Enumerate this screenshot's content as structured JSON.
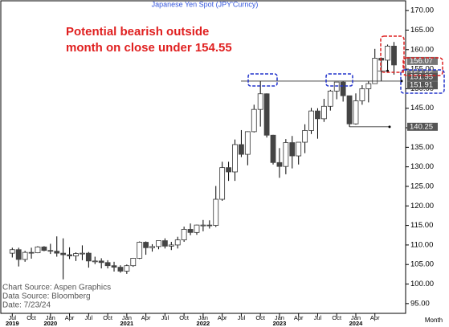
{
  "chart_data": {
    "type": "candlestick",
    "title": "Japanese Yen Spot (JPY'Curncy)",
    "annotation": [
      "Potential bearish outside",
      "month on close under 154.55"
    ],
    "source": [
      "Chart Source:  Aspen Graphics",
      "Data  Source:  Bloomberg",
      "Date:    7/23/24"
    ],
    "x_axis_label": "Month",
    "x": [
      "2019-07",
      "2019-08",
      "2019-09",
      "2019-10",
      "2019-11",
      "2019-12",
      "2020-01",
      "2020-02",
      "2020-03",
      "2020-04",
      "2020-05",
      "2020-06",
      "2020-07",
      "2020-08",
      "2020-09",
      "2020-10",
      "2020-11",
      "2020-12",
      "2021-01",
      "2021-02",
      "2021-03",
      "2021-04",
      "2021-05",
      "2021-06",
      "2021-07",
      "2021-08",
      "2021-09",
      "2021-10",
      "2021-11",
      "2021-12",
      "2022-01",
      "2022-02",
      "2022-03",
      "2022-04",
      "2022-05",
      "2022-06",
      "2022-07",
      "2022-08",
      "2022-09",
      "2022-10",
      "2022-11",
      "2022-12",
      "2023-01",
      "2023-02",
      "2023-03",
      "2023-04",
      "2023-05",
      "2023-06",
      "2023-07",
      "2023-08",
      "2023-09",
      "2023-10",
      "2023-11",
      "2023-12",
      "2024-01",
      "2024-02",
      "2024-03",
      "2024-04",
      "2024-05",
      "2024-06",
      "2024-07"
    ],
    "open": [
      107.9,
      108.8,
      106.3,
      108.1,
      108.0,
      109.5,
      108.6,
      108.4,
      107.9,
      107.5,
      107.2,
      107.8,
      107.9,
      105.9,
      105.9,
      105.5,
      104.7,
      104.3,
      103.3,
      104.7,
      106.6,
      110.7,
      109.3,
      109.6,
      111.1,
      109.7,
      110.0,
      111.3,
      114.0,
      113.2,
      115.1,
      115.1,
      115.0,
      121.7,
      129.8,
      128.7,
      135.7,
      133.2,
      139.0,
      144.7,
      148.7,
      138.1,
      131.1,
      130.1,
      136.2,
      132.8,
      136.3,
      139.3,
      144.3,
      142.3,
      145.5,
      149.4,
      151.7,
      148.2,
      141.0,
      146.9,
      150.0,
      151.3,
      157.8,
      157.3,
      160.9
    ],
    "high": [
      109.3,
      109.3,
      108.5,
      109.3,
      109.7,
      109.7,
      110.3,
      112.2,
      111.7,
      109.4,
      108.1,
      109.9,
      108.2,
      107.0,
      106.6,
      106.1,
      105.7,
      104.8,
      105.0,
      106.7,
      110.9,
      110.9,
      110.2,
      111.1,
      111.7,
      110.8,
      112.1,
      114.7,
      115.5,
      115.2,
      116.4,
      116.3,
      125.1,
      131.3,
      131.3,
      137.0,
      139.4,
      139.1,
      145.9,
      151.95,
      148.8,
      138.2,
      134.8,
      137.1,
      137.9,
      136.3,
      140.9,
      145.1,
      145.0,
      147.4,
      149.7,
      151.7,
      151.91,
      148.2,
      148.8,
      150.9,
      151.9,
      160.2,
      157.99,
      161.3,
      161.95
    ],
    "low": [
      106.8,
      104.5,
      105.7,
      106.5,
      107.9,
      108.4,
      107.7,
      107.0,
      101.2,
      106.4,
      105.9,
      106.1,
      104.2,
      105.1,
      104.0,
      104.0,
      103.2,
      102.9,
      102.6,
      104.4,
      106.4,
      107.5,
      108.3,
      108.9,
      109.1,
      108.7,
      109.1,
      110.8,
      112.5,
      112.6,
      113.5,
      114.2,
      114.6,
      121.3,
      126.4,
      126.4,
      132.5,
      130.4,
      138.8,
      140.3,
      137.5,
      130.6,
      127.2,
      128.1,
      129.6,
      130.6,
      133.5,
      138.4,
      137.2,
      141.5,
      144.4,
      147.3,
      146.7,
      140.25,
      140.8,
      145.9,
      146.5,
      151.3,
      151.9,
      154.55,
      153.6
    ],
    "close": [
      108.8,
      106.3,
      108.1,
      108.0,
      109.5,
      108.6,
      108.4,
      107.9,
      107.5,
      107.2,
      107.8,
      107.9,
      105.9,
      105.9,
      105.5,
      104.7,
      104.3,
      103.3,
      104.7,
      106.6,
      110.7,
      109.3,
      109.6,
      111.1,
      109.7,
      110.0,
      111.3,
      114.0,
      113.2,
      115.1,
      115.1,
      115.0,
      121.7,
      129.8,
      128.7,
      135.7,
      133.2,
      139.0,
      144.7,
      148.7,
      138.1,
      131.1,
      130.1,
      136.2,
      132.8,
      136.3,
      139.3,
      144.3,
      142.3,
      145.5,
      149.4,
      151.7,
      148.2,
      141.0,
      146.9,
      150.0,
      151.3,
      157.8,
      157.3,
      160.9,
      156.07
    ],
    "up_color": "#ffffff",
    "down_color": "#444444",
    "xticks": [
      {
        "value": "2019-07",
        "label": "Jul"
      },
      {
        "value": "2019-10",
        "label": "Oct"
      },
      {
        "value": "2020-01",
        "label": "Jan"
      },
      {
        "value": "2020-04",
        "label": "Apr"
      },
      {
        "value": "2020-07",
        "label": "Jul"
      },
      {
        "value": "2020-10",
        "label": "Oct"
      },
      {
        "value": "2021-01",
        "label": "Jan"
      },
      {
        "value": "2021-04",
        "label": "Apr"
      },
      {
        "value": "2021-07",
        "label": "Jul"
      },
      {
        "value": "2021-10",
        "label": "Oct"
      },
      {
        "value": "2022-01",
        "label": "Jan"
      },
      {
        "value": "2022-04",
        "label": "Apr"
      },
      {
        "value": "2022-07",
        "label": "Jul"
      },
      {
        "value": "2022-10",
        "label": "Oct"
      },
      {
        "value": "2023-01",
        "label": "Jan"
      },
      {
        "value": "2023-04",
        "label": "Apr"
      },
      {
        "value": "2023-07",
        "label": "Jul"
      },
      {
        "value": "2023-10",
        "label": "Oct"
      },
      {
        "value": "2024-01",
        "label": "Jan"
      },
      {
        "value": "2024-04",
        "label": "Apr"
      }
    ],
    "year_ticks": [
      {
        "value": "2019-07",
        "label": "2019"
      },
      {
        "value": "2020-01",
        "label": "2020"
      },
      {
        "value": "2021-01",
        "label": "2021"
      },
      {
        "value": "2022-01",
        "label": "2022"
      },
      {
        "value": "2023-01",
        "label": "2023"
      },
      {
        "value": "2024-01",
        "label": "2024"
      }
    ],
    "ylim": [
      92.5,
      172.5
    ],
    "yticks": [
      {
        "value": 95,
        "label": "95.00"
      },
      {
        "value": 100,
        "label": "100.00"
      },
      {
        "value": 105,
        "label": "105.00"
      },
      {
        "value": 110,
        "label": "110.00"
      },
      {
        "value": 115,
        "label": "115.00"
      },
      {
        "value": 120,
        "label": "120.00"
      },
      {
        "value": 125,
        "label": "125.00"
      },
      {
        "value": 130,
        "label": "130.00"
      },
      {
        "value": 135,
        "label": "135.00"
      },
      {
        "value": 140,
        "label": "140.00"
      },
      {
        "value": 145,
        "label": "145.00"
      },
      {
        "value": 150,
        "label": "150.00"
      },
      {
        "value": 155,
        "label": "155.00"
      },
      {
        "value": 160,
        "label": "160.00"
      },
      {
        "value": 165,
        "label": "165.00"
      },
      {
        "value": 170,
        "label": "170.00"
      }
    ],
    "price_labels": [
      156.07,
      154.55,
      151.95,
      151.91,
      140.25
    ]
  }
}
